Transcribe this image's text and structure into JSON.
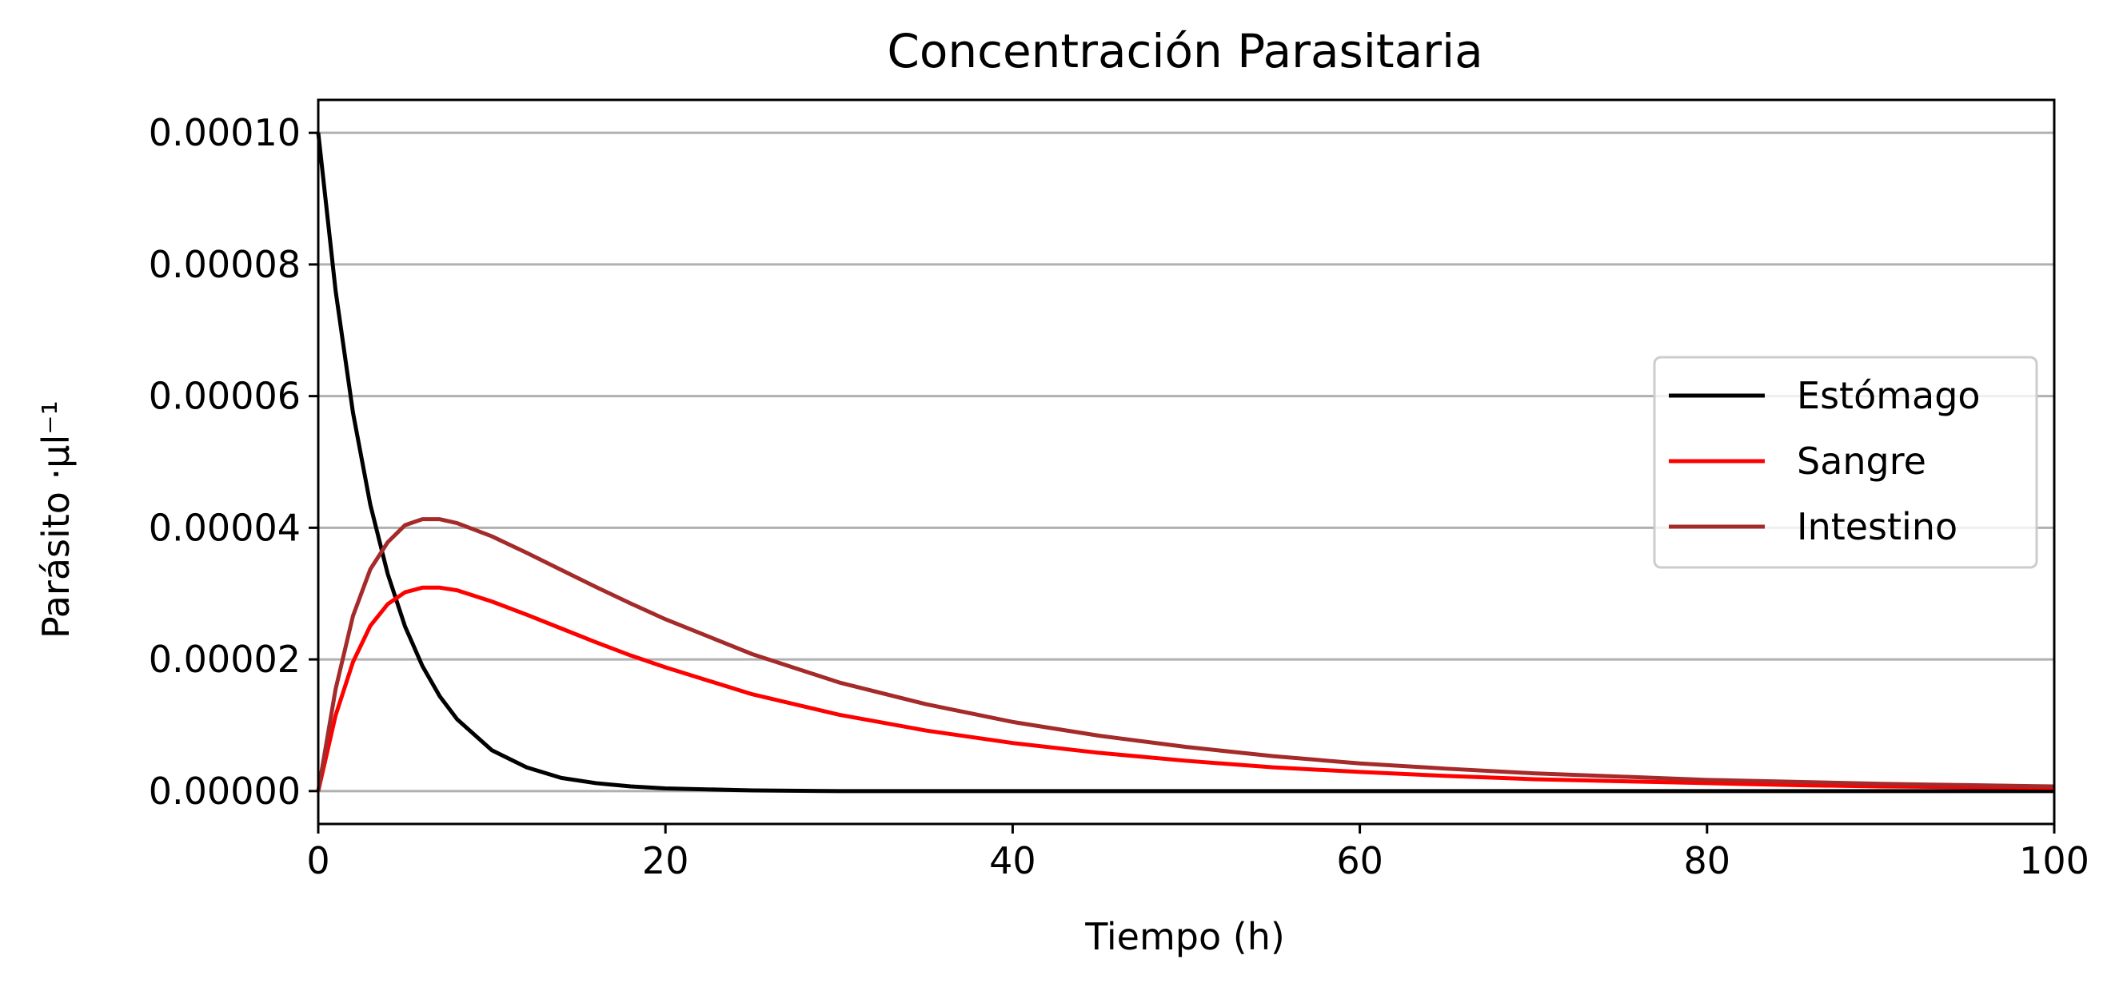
{
  "chart_data": {
    "type": "line",
    "title": "Concentración Parasitaria",
    "xlabel": "Tiempo (h)",
    "ylabel": "Parásito ·μl⁻¹",
    "xlim": [
      0,
      100
    ],
    "ylim": [
      -5e-06,
      0.000105
    ],
    "x_ticks": [
      0,
      20,
      40,
      60,
      80,
      100
    ],
    "x_tick_labels": [
      "0",
      "20",
      "40",
      "60",
      "80",
      "100"
    ],
    "y_ticks": [
      0,
      2e-05,
      4e-05,
      6e-05,
      8e-05,
      0.0001
    ],
    "y_tick_labels": [
      "0.00000",
      "0.00002",
      "0.00004",
      "0.00006",
      "0.00008",
      "0.00010"
    ],
    "grid": "horizontal",
    "legend_position": "center-right",
    "x": [
      0,
      1,
      2,
      3,
      4,
      5,
      6,
      7,
      8,
      10,
      12,
      14,
      16,
      18,
      20,
      25,
      30,
      35,
      40,
      45,
      50,
      55,
      60,
      65,
      70,
      75,
      80,
      85,
      90,
      95,
      100
    ],
    "series": [
      {
        "name": "Estómago",
        "color": "#000000",
        "values": [
          0.0001,
          7.6e-05,
          5.75e-05,
          4.35e-05,
          3.3e-05,
          2.5e-05,
          1.9e-05,
          1.44e-05,
          1.09e-05,
          6.2e-06,
          3.6e-06,
          2e-06,
          1.2e-06,
          7e-07,
          4e-07,
          1e-07,
          0,
          0,
          0,
          0,
          0,
          0,
          0,
          0,
          0,
          0,
          0,
          0,
          0,
          0,
          0
        ]
      },
      {
        "name": "Sangre",
        "color": "#ff0000",
        "values": [
          0,
          1.15e-05,
          1.96e-05,
          2.51e-05,
          2.84e-05,
          3.02e-05,
          3.09e-05,
          3.09e-05,
          3.05e-05,
          2.88e-05,
          2.68e-05,
          2.47e-05,
          2.26e-05,
          2.06e-05,
          1.88e-05,
          1.47e-05,
          1.16e-05,
          9.2e-06,
          7.3e-06,
          5.8e-06,
          4.6e-06,
          3.6e-06,
          2.9e-06,
          2.3e-06,
          1.8e-06,
          1.5e-06,
          1.2e-06,
          9e-07,
          7e-07,
          6e-07,
          5e-07
        ]
      },
      {
        "name": "Intestino",
        "color": "#a52a2a",
        "values": [
          0,
          1.55e-05,
          2.66e-05,
          3.37e-05,
          3.78e-05,
          4.04e-05,
          4.13e-05,
          4.13e-05,
          4.07e-05,
          3.87e-05,
          3.62e-05,
          3.36e-05,
          3.1e-05,
          2.85e-05,
          2.61e-05,
          2.08e-05,
          1.65e-05,
          1.32e-05,
          1.05e-05,
          8.4e-06,
          6.7e-06,
          5.3e-06,
          4.2e-06,
          3.4e-06,
          2.7e-06,
          2.2e-06,
          1.7e-06,
          1.4e-06,
          1.1e-06,
          9e-07,
          7e-07
        ]
      }
    ]
  },
  "colors": {
    "grid": "#b0b0b0",
    "axes": "#000000",
    "legend_border": "#cccccc"
  }
}
